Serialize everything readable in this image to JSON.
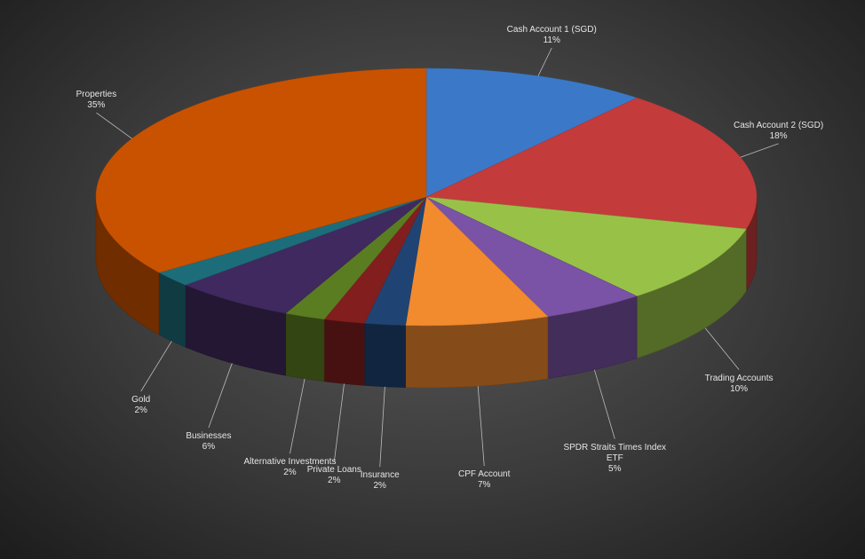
{
  "chart_data": {
    "type": "pie3d",
    "categories": [
      "Cash Account 1 (SGD)",
      "Cash Account 2 (SGD)",
      "Trading Accounts",
      "SPDR Straits Times Index ETF",
      "CPF Account",
      "Insurance",
      "Private Loans",
      "Alternative Investments",
      "Businesses",
      "Gold",
      "Properties"
    ],
    "values": [
      11,
      18,
      10,
      5,
      7,
      2,
      2,
      2,
      6,
      2,
      35
    ],
    "value_labels": [
      "11%",
      "18%",
      "10%",
      "5%",
      "7%",
      "2%",
      "2%",
      "2%",
      "6%",
      "2%",
      "35%"
    ],
    "colors": [
      "#3b79c8",
      "#c43b3b",
      "#98c247",
      "#7a52a6",
      "#f28a2e",
      "#1f4474",
      "#821e1e",
      "#5b7d22",
      "#40295f",
      "#1d6c7a",
      "#c95200"
    ]
  }
}
